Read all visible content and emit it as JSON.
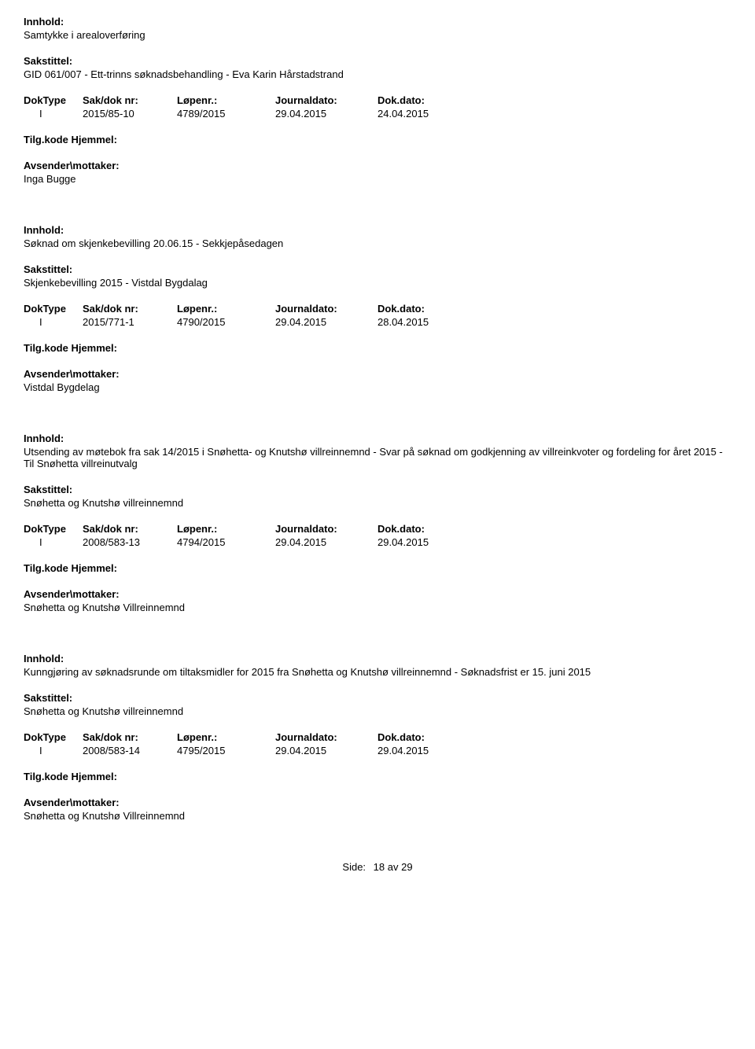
{
  "labels": {
    "innhold": "Innhold:",
    "sakstittel": "Sakstittel:",
    "doktype": "DokType",
    "saknr": "Sak/dok nr:",
    "lopenr": "Løpenr.:",
    "journaldato": "Journaldato:",
    "dokdato": "Dok.dato:",
    "tilgkode": "Tilg.kode",
    "hjemmel": "Hjemmel:",
    "avsender": "Avsender\\mottaker:"
  },
  "records": [
    {
      "innhold": "Samtykke i arealoverføring",
      "sakstittel": "GID 061/007 - Ett-trinns søknadsbehandling - Eva Karin Hårstadstrand",
      "doktype": "I",
      "saknr": "2015/85-10",
      "lopenr": "4789/2015",
      "journaldato": "29.04.2015",
      "dokdato": "24.04.2015",
      "avsender": "Inga Bugge"
    },
    {
      "innhold": "Søknad om skjenkebevilling 20.06.15 - Sekkjepåsedagen",
      "sakstittel": "Skjenkebevilling 2015 - Vistdal Bygdalag",
      "doktype": "I",
      "saknr": "2015/771-1",
      "lopenr": "4790/2015",
      "journaldato": "29.04.2015",
      "dokdato": "28.04.2015",
      "avsender": "Vistdal Bygdelag"
    },
    {
      "innhold": "Utsending av møtebok fra sak 14/2015 i Snøhetta- og Knutshø villreinnemnd - Svar på søknad om godkjenning av villreinkvoter og fordeling for året 2015 - Til Snøhetta villreinutvalg",
      "sakstittel": "Snøhetta og Knutshø villreinnemnd",
      "doktype": "I",
      "saknr": "2008/583-13",
      "lopenr": "4794/2015",
      "journaldato": "29.04.2015",
      "dokdato": "29.04.2015",
      "avsender": "Snøhetta og Knutshø Villreinnemnd"
    },
    {
      "innhold": "Kunngjøring av søknadsrunde om tiltaksmidler for 2015 fra Snøhetta og Knutshø villreinnemnd - Søknadsfrist er 15. juni 2015",
      "sakstittel": "Snøhetta og Knutshø villreinnemnd",
      "doktype": "I",
      "saknr": "2008/583-14",
      "lopenr": "4795/2015",
      "journaldato": "29.04.2015",
      "dokdato": "29.04.2015",
      "avsender": "Snøhetta og Knutshø Villreinnemnd"
    }
  ],
  "footer": {
    "side_label": "Side:",
    "page_current": "18",
    "page_sep": "av",
    "page_total": "29"
  }
}
